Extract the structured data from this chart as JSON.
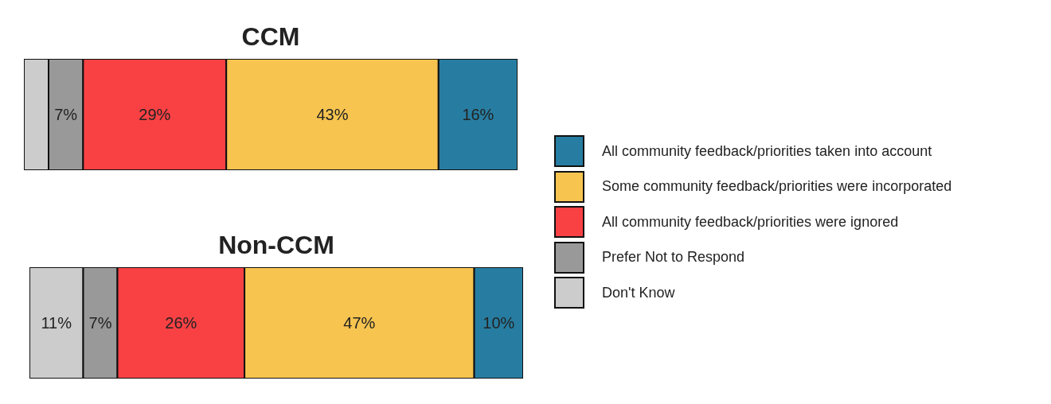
{
  "chart_data": [
    {
      "type": "bar",
      "title": "CCM",
      "orientation": "horizontal",
      "stacked": true,
      "categories": [
        null
      ],
      "legend": "right",
      "series": [
        {
          "name": "Don't Know",
          "color": "#cccccc",
          "values": [
            5
          ],
          "value_labels": [
            null
          ]
        },
        {
          "name": "Prefer Not to Respond",
          "color": "#999999",
          "values": [
            7
          ],
          "value_labels": [
            "7%"
          ]
        },
        {
          "name": "All community feedback/priorities were ignored",
          "color": "#f94144",
          "values": [
            29
          ],
          "value_labels": [
            "29%"
          ]
        },
        {
          "name": "Some community feedback/priorities were incorporated",
          "color": "#f7c450",
          "values": [
            43
          ],
          "value_labels": [
            "43%"
          ]
        },
        {
          "name": "All community feedback/priorities taken into account",
          "color": "#277da1",
          "values": [
            16
          ],
          "value_labels": [
            "16%"
          ]
        }
      ]
    },
    {
      "type": "bar",
      "title": "Non-CCM",
      "orientation": "horizontal",
      "stacked": true,
      "categories": [
        null
      ],
      "series": [
        {
          "color": "#cccccc",
          "values": [
            11
          ],
          "value_labels": [
            "11%"
          ]
        },
        {
          "color": "#999999",
          "values": [
            7
          ],
          "value_labels": [
            "7%"
          ]
        },
        {
          "color": "#f94144",
          "values": [
            26
          ],
          "value_labels": [
            "26%"
          ]
        },
        {
          "color": "#f7c450",
          "values": [
            47
          ],
          "value_labels": [
            "47%"
          ]
        },
        {
          "color": "#277da1",
          "values": [
            10
          ],
          "value_labels": [
            "10%"
          ]
        }
      ]
    }
  ]
}
